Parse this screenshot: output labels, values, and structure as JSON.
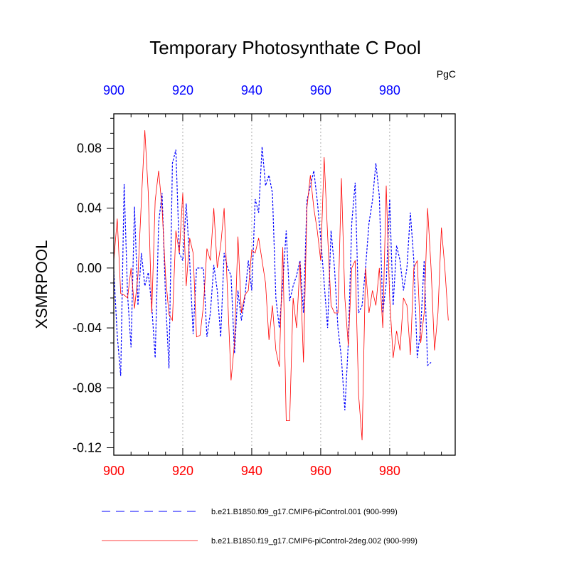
{
  "chart_data": {
    "type": "line",
    "title": "Temporary Photosynthate C Pool",
    "units": "PgC",
    "ylabel": "XSMRPOOL",
    "xlabel": "",
    "xlim": [
      900,
      999
    ],
    "ylim": [
      -0.125,
      0.103
    ],
    "x_ticks": [
      900,
      920,
      940,
      960,
      980
    ],
    "x_tick_labels": [
      "900",
      "920",
      "940",
      "960",
      "980"
    ],
    "y_ticks": [
      0.08,
      0.04,
      0.0,
      -0.04,
      -0.08,
      -0.12
    ],
    "y_tick_labels": [
      "0.08",
      "0.04",
      "0.00",
      "-0.04",
      "-0.08",
      "-0.12"
    ],
    "top_axis_color": "#0000ff",
    "bottom_axis_color": "#ff0000",
    "grid": "vertical dotted at major x ticks",
    "series": [
      {
        "name": "b.e21.B1850.f09_g17.CMIP6-piControl.001 (900-999)",
        "color": "#0000ff",
        "style": "dashed",
        "x_start": 900,
        "values": [
          -0.002,
          -0.045,
          -0.072,
          0.056,
          -0.018,
          -0.053,
          0.041,
          -0.025,
          0.01,
          -0.012,
          -0.003,
          -0.025,
          -0.06,
          0.03,
          0.05,
          -0.02,
          -0.067,
          0.07,
          0.079,
          0.01,
          0.005,
          0.043,
          0.005,
          -0.044,
          0.0,
          0.0,
          0.0,
          -0.046,
          -0.03,
          0.002,
          -0.015,
          -0.046,
          0.01,
          0.0,
          -0.005,
          -0.057,
          -0.015,
          -0.035,
          -0.02,
          0.005,
          -0.015,
          0.046,
          0.037,
          0.081,
          0.055,
          0.062,
          0.05,
          -0.02,
          -0.04,
          -0.01,
          0.025,
          -0.022,
          -0.012,
          -0.005,
          0.005,
          -0.03,
          0.045,
          0.055,
          0.065,
          0.045,
          0.02,
          -0.01,
          -0.04,
          0.025,
          0.0,
          -0.04,
          -0.06,
          -0.095,
          -0.05,
          0.03,
          0.057,
          -0.03,
          -0.025,
          0.0,
          0.03,
          0.045,
          0.07,
          0.048,
          -0.03,
          -0.01,
          0.046,
          -0.025,
          0.015,
          0.005,
          -0.015,
          0.0,
          0.037,
          0.005,
          -0.06,
          -0.04,
          0.005,
          -0.065,
          -0.063
        ],
        "note": "approximate values read from dense line"
      },
      {
        "name": "b.e21.B1850.f19_g17.CMIP6-piControl-2deg.002 (900-999)",
        "color": "#ff0000",
        "style": "solid",
        "x_start": 900,
        "values": [
          0.005,
          0.033,
          -0.017,
          -0.018,
          -0.02,
          0.0,
          -0.027,
          -0.005,
          0.045,
          0.092,
          0.05,
          -0.03,
          0.045,
          0.065,
          0.04,
          -0.005,
          -0.031,
          -0.035,
          0.025,
          0.01,
          0.05,
          -0.012,
          0.02,
          0.01,
          -0.046,
          -0.045,
          -0.025,
          0.013,
          0.005,
          0.04,
          0.0,
          0.015,
          0.04,
          -0.018,
          -0.075,
          -0.05,
          0.021,
          -0.03,
          -0.018,
          -0.015,
          0.012,
          0.01,
          0.02,
          0.005,
          -0.01,
          -0.048,
          -0.025,
          -0.055,
          -0.066,
          0.014,
          -0.102,
          -0.102,
          -0.02,
          -0.04,
          0.004,
          -0.063,
          0.04,
          0.062,
          0.04,
          0.025,
          0.005,
          0.074,
          0.022,
          -0.025,
          -0.03,
          -0.03,
          0.06,
          -0.02,
          -0.052,
          0.0,
          0.005,
          -0.085,
          -0.115,
          0.0,
          -0.03,
          -0.015,
          -0.025,
          0.0,
          -0.04,
          0.055,
          -0.02,
          -0.06,
          -0.042,
          -0.055,
          -0.02,
          -0.025,
          -0.058,
          0.0,
          0.005,
          -0.05,
          -0.03,
          0.04,
          0.0,
          -0.055,
          -0.03,
          0.027,
          0.0,
          -0.035
        ],
        "note": "approximate values read from dense line"
      }
    ],
    "legend": [
      {
        "label": "b.e21.B1850.f09_g17.CMIP6-piControl.001 (900-999)",
        "color": "#0000ff",
        "style": "dashed"
      },
      {
        "label": "b.e21.B1850.f19_g17.CMIP6-piControl-2deg.002 (900-999)",
        "color": "#ff0000",
        "style": "solid"
      }
    ]
  }
}
